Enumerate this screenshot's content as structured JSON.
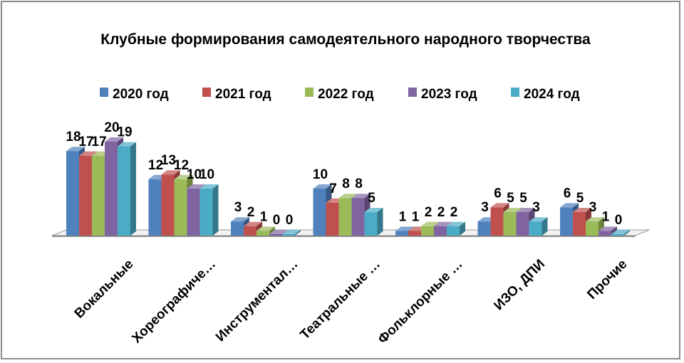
{
  "chart_data": {
    "type": "bar",
    "title": "Клубные формирования самодеятельного народного творчества",
    "categories": [
      "Вокальные",
      "Хореографиче…",
      "Инструментал…",
      "Театральные …",
      "Фольклорные …",
      "ИЗО, ДПИ",
      "Прочие"
    ],
    "series": [
      {
        "name": "2020 год",
        "color": "#4f81bd",
        "values": [
          18,
          12,
          3,
          10,
          1,
          3,
          6
        ]
      },
      {
        "name": "2021 год",
        "color": "#c0504d",
        "values": [
          17,
          13,
          2,
          7,
          1,
          6,
          5
        ]
      },
      {
        "name": "2022 год",
        "color": "#9bbb59",
        "values": [
          17,
          12,
          1,
          8,
          2,
          5,
          3
        ]
      },
      {
        "name": "2023 год",
        "color": "#8064a2",
        "values": [
          20,
          10,
          0,
          8,
          2,
          5,
          1
        ]
      },
      {
        "name": "2024 год",
        "color": "#4bacc6",
        "values": [
          19,
          10,
          0,
          5,
          2,
          3,
          0
        ]
      }
    ],
    "ylim": [
      0,
      20
    ],
    "legend_position": "top",
    "grid": false,
    "style": "3d-clustered-column"
  }
}
